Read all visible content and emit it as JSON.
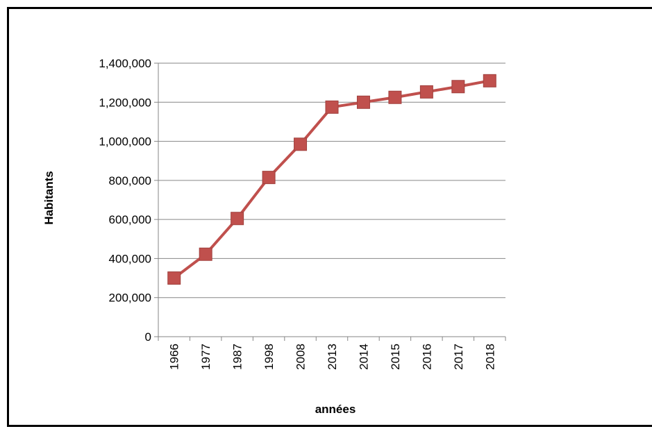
{
  "chart_data": {
    "type": "line",
    "title": "",
    "xlabel": "années",
    "ylabel": "Habitants",
    "categories": [
      "1966",
      "1977",
      "1987",
      "1998",
      "2008",
      "2013",
      "2014",
      "2015",
      "2016",
      "2017",
      "2018"
    ],
    "series": [
      {
        "values": [
          300000,
          422000,
          605000,
          815000,
          985000,
          1175000,
          1200000,
          1225000,
          1253000,
          1280000,
          1310000
        ],
        "color": "#C0504D",
        "marker": "square"
      }
    ],
    "ylim": [
      0,
      1400000
    ],
    "yticks": [
      0,
      200000,
      400000,
      600000,
      800000,
      1000000,
      1200000,
      1400000
    ],
    "ytick_labels": [
      "0",
      "200,000",
      "400,000",
      "600,000",
      "800,000",
      "1,000,000",
      "1,200,000",
      "1,400,000"
    ],
    "grid": true,
    "legend": "none"
  }
}
